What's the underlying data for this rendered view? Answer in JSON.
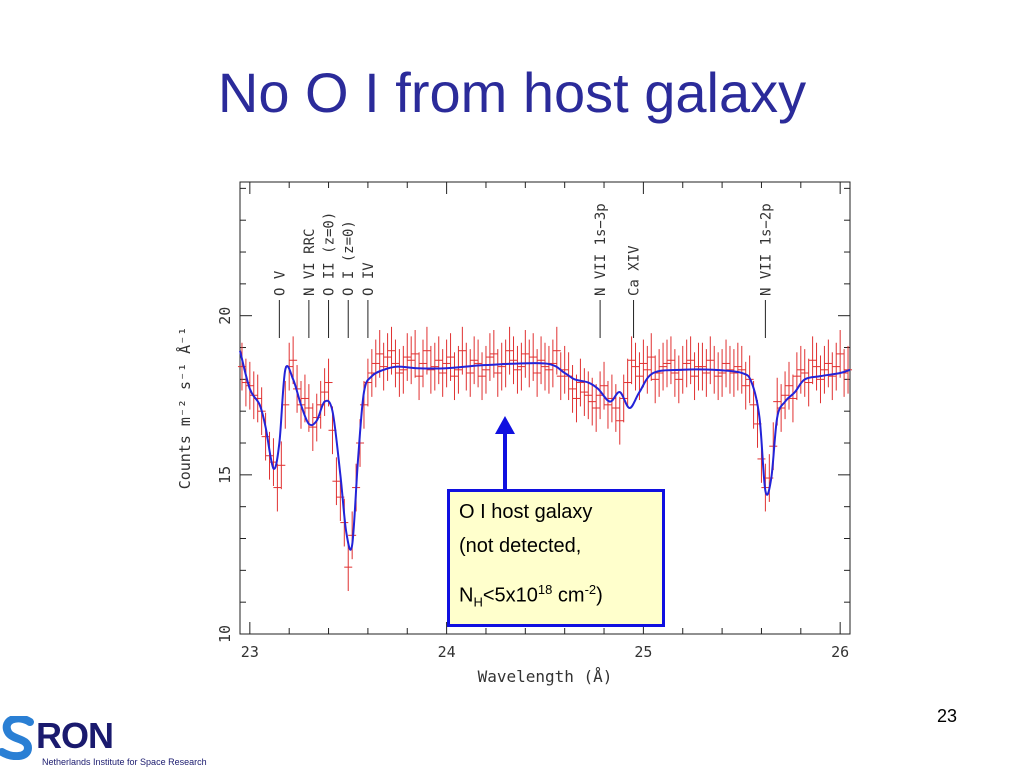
{
  "slide": {
    "title": "No O I from host galaxy",
    "page_number": "23"
  },
  "callout": {
    "line1": "O I host galaxy",
    "line2": "(not detected,",
    "line3_prefix": "N",
    "line3_sub": "H",
    "line3_mid": "<5x10",
    "line3_sup": "18",
    "line3_unit": " cm",
    "line3_unit_sup": "-2",
    "line3_close": ")"
  },
  "logo": {
    "wordmark_letters": "RON",
    "tagline": "Netherlands Institute for Space Research"
  },
  "colors": {
    "title": "#2b2b9a",
    "data": "#e03030",
    "model": "#2323d8",
    "arrow": "#1010e0",
    "callout_bg": "#ffffcc"
  },
  "chart_data": {
    "type": "line",
    "xlabel": "Wavelength (Å)",
    "ylabel": "Counts m⁻² s⁻¹ Å⁻¹",
    "xlim": [
      22.95,
      26.05
    ],
    "ylim": [
      10,
      24.2
    ],
    "x_ticks": [
      23,
      24,
      25,
      26
    ],
    "y_ticks": [
      10,
      15,
      20
    ],
    "line_labels": [
      {
        "x": 23.15,
        "label": "O V"
      },
      {
        "x": 23.3,
        "label": "N VI RRC"
      },
      {
        "x": 23.4,
        "label": "O II (z=0)"
      },
      {
        "x": 23.5,
        "label": "O I (z=0)"
      },
      {
        "x": 23.6,
        "label": "O IV"
      },
      {
        "x": 24.78,
        "label": "N VII 1s−3p"
      },
      {
        "x": 24.95,
        "label": "Ca XIV"
      },
      {
        "x": 25.62,
        "label": "N VII 1s−2p"
      }
    ],
    "series": [
      {
        "kind": "model",
        "x": [
          22.95,
          23.0,
          23.05,
          23.08,
          23.12,
          23.15,
          23.18,
          23.22,
          23.26,
          23.3,
          23.34,
          23.38,
          23.42,
          23.46,
          23.49,
          23.52,
          23.55,
          23.58,
          23.62,
          23.68,
          23.75,
          23.85,
          24.0,
          24.2,
          24.5,
          24.6,
          24.65,
          24.72,
          24.77,
          24.83,
          24.88,
          24.93,
          24.98,
          25.05,
          25.2,
          25.35,
          25.5,
          25.55,
          25.59,
          25.62,
          25.65,
          25.68,
          25.72,
          25.77,
          25.82,
          25.9,
          26.0,
          26.05
        ],
        "y": [
          18.9,
          17.7,
          17.2,
          16.5,
          15.2,
          16.0,
          18.3,
          18.0,
          17.2,
          16.6,
          16.7,
          17.3,
          17.0,
          15.0,
          13.2,
          12.8,
          15.5,
          17.6,
          18.1,
          18.3,
          18.4,
          18.35,
          18.35,
          18.45,
          18.5,
          18.2,
          18.0,
          17.9,
          17.7,
          17.3,
          17.6,
          17.1,
          17.6,
          18.2,
          18.3,
          18.3,
          18.2,
          17.9,
          16.8,
          14.5,
          14.9,
          16.8,
          17.3,
          17.6,
          18.0,
          18.1,
          18.2,
          18.3
        ]
      },
      {
        "kind": "data",
        "x": [
          22.96,
          22.98,
          23.0,
          23.02,
          23.04,
          23.06,
          23.08,
          23.1,
          23.12,
          23.14,
          23.16,
          23.18,
          23.2,
          23.22,
          23.24,
          23.26,
          23.28,
          23.3,
          23.32,
          23.34,
          23.36,
          23.38,
          23.4,
          23.42,
          23.44,
          23.46,
          23.48,
          23.5,
          23.52,
          23.54,
          23.56,
          23.58,
          23.6,
          23.62,
          23.64,
          23.66,
          23.68,
          23.7,
          23.72,
          23.74,
          23.76,
          23.78,
          23.8,
          23.82,
          23.84,
          23.86,
          23.88,
          23.9,
          23.92,
          23.94,
          23.96,
          23.98,
          24.0,
          24.02,
          24.04,
          24.06,
          24.08,
          24.1,
          24.12,
          24.14,
          24.16,
          24.18,
          24.2,
          24.22,
          24.24,
          24.26,
          24.28,
          24.3,
          24.32,
          24.34,
          24.36,
          24.38,
          24.4,
          24.42,
          24.44,
          24.46,
          24.48,
          24.5,
          24.52,
          24.54,
          24.56,
          24.58,
          24.6,
          24.62,
          24.64,
          24.66,
          24.68,
          24.7,
          24.72,
          24.74,
          24.76,
          24.78,
          24.8,
          24.82,
          24.84,
          24.86,
          24.88,
          24.9,
          24.92,
          24.94,
          24.96,
          24.98,
          25.0,
          25.02,
          25.04,
          25.06,
          25.08,
          25.1,
          25.12,
          25.14,
          25.16,
          25.18,
          25.2,
          25.22,
          25.24,
          25.26,
          25.28,
          25.3,
          25.32,
          25.34,
          25.36,
          25.38,
          25.4,
          25.42,
          25.44,
          25.46,
          25.48,
          25.5,
          25.52,
          25.54,
          25.56,
          25.58,
          25.6,
          25.62,
          25.64,
          25.66,
          25.68,
          25.7,
          25.72,
          25.74,
          25.76,
          25.78,
          25.8,
          25.82,
          25.84,
          25.86,
          25.88,
          25.9,
          25.92,
          25.94,
          25.96,
          25.98,
          26.0,
          26.02,
          26.04
        ],
        "y": [
          18.4,
          17.9,
          17.8,
          17.5,
          17.4,
          17.0,
          16.2,
          15.6,
          15.4,
          14.6,
          15.3,
          17.2,
          18.4,
          18.6,
          17.7,
          17.2,
          17.4,
          17.1,
          16.5,
          16.8,
          17.2,
          17.6,
          17.9,
          16.4,
          14.8,
          14.3,
          13.5,
          12.1,
          13.1,
          14.6,
          16.0,
          17.2,
          17.9,
          18.2,
          18.5,
          18.8,
          18.4,
          18.7,
          18.9,
          18.5,
          18.2,
          18.3,
          18.7,
          18.6,
          18.8,
          18.1,
          18.5,
          18.9,
          18.3,
          18.4,
          18.6,
          18.2,
          18.5,
          18.7,
          18.1,
          18.3,
          18.9,
          18.4,
          18.2,
          18.6,
          18.5,
          18.1,
          18.3,
          18.7,
          18.8,
          18.2,
          18.4,
          18.5,
          18.9,
          18.6,
          18.3,
          18.4,
          18.8,
          18.5,
          18.7,
          18.2,
          18.6,
          18.4,
          18.3,
          18.5,
          18.9,
          18.1,
          18.3,
          18.1,
          17.7,
          17.4,
          17.9,
          17.6,
          17.5,
          17.3,
          17.1,
          17.5,
          17.8,
          17.2,
          17.4,
          17.1,
          16.7,
          17.4,
          17.9,
          18.6,
          18.4,
          18.1,
          18.5,
          18.3,
          18.7,
          18.0,
          18.2,
          18.4,
          18.5,
          18.6,
          18.2,
          18.0,
          18.3,
          18.5,
          18.6,
          18.1,
          18.4,
          18.4,
          18.2,
          18.6,
          18.3,
          18.1,
          18.2,
          18.5,
          18.3,
          18.2,
          18.4,
          18.3,
          17.8,
          18.0,
          17.2,
          16.6,
          15.5,
          14.6,
          14.9,
          15.9,
          17.3,
          17.1,
          17.5,
          17.8,
          17.4,
          18.1,
          18.3,
          18.2,
          17.9,
          18.6,
          18.4,
          18.0,
          18.3,
          18.5,
          18.1,
          18.4,
          18.8,
          18.2,
          18.3
        ]
      }
    ],
    "annotation": {
      "x": 24.3,
      "label": "O I host galaxy"
    }
  }
}
